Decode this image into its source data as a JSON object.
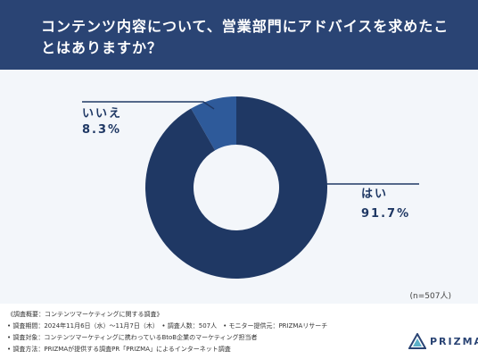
{
  "header": {
    "title": "コンテンツ内容について、営業部門にアドバイスを求めたことはありますか？"
  },
  "chart_data": {
    "type": "pie",
    "categories": [
      "はい",
      "いいえ"
    ],
    "values": [
      91.7,
      8.3
    ],
    "value_labels": [
      "91.7%",
      "8.3%"
    ],
    "colors": [
      "#1f3864",
      "#2e5a9a"
    ],
    "title": "",
    "note": "(n=507人)"
  },
  "survey": {
    "lines": [
      "《調査概要：コンテンツマーケティングに関する調査》",
      "• 調査期間：2024年11月6日（水）〜11月7日（木）　• 調査人数：507人　• モニター提供元：PRIZMAリサーチ",
      "• 調査対象：コンテンツマーケティングに携わっているBtoB企業のマーケティング担当者",
      "• 調査方法：PRIZMAが提供する調査PR「PRIZMA」によるインターネット調査"
    ]
  },
  "brand": {
    "name": "PRIZMA",
    "icon": "prizma-triangle-icon",
    "color": "#2a4474"
  }
}
